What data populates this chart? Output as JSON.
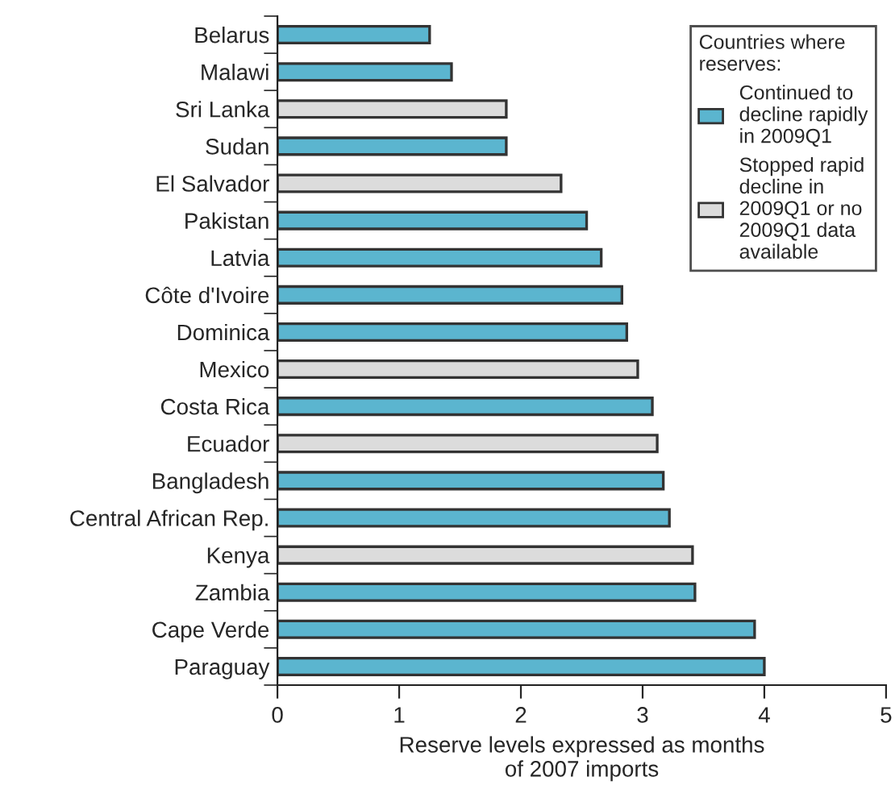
{
  "chart_data": {
    "type": "bar",
    "orientation": "horizontal",
    "xlabel": "Reserve levels expressed as months\nof 2007 imports",
    "legend_title": "Countries where\nreserves:",
    "legend": "top right",
    "grid": false,
    "categories": [
      "Belarus",
      "Malawi",
      "Sri Lanka",
      "Sudan",
      "El Salvador",
      "Pakistan",
      "Latvia",
      "Côte d'Ivoire",
      "Dominica",
      "Mexico",
      "Costa Rica",
      "Ecuador",
      "Bangladesh",
      "Central African Rep.",
      "Kenya",
      "Zambia",
      "Cape Verde",
      "Paraguay"
    ],
    "series": [
      {
        "name": "Continued to\ndecline rapidly\nin 2009Q1",
        "color": "#5bb5cf",
        "values": [
          1.25,
          1.43,
          null,
          1.88,
          null,
          2.54,
          2.66,
          2.83,
          2.87,
          null,
          3.08,
          null,
          3.17,
          3.22,
          null,
          3.43,
          3.92,
          4.0
        ]
      },
      {
        "name": "Stopped rapid\ndecline in\n2009Q1 or no\n2009Q1 data\navailable",
        "color": "#dcdcdc",
        "values": [
          null,
          null,
          1.88,
          null,
          2.33,
          null,
          null,
          null,
          null,
          2.96,
          null,
          3.12,
          null,
          null,
          3.41,
          null,
          null,
          null
        ]
      }
    ],
    "xlim": [
      0,
      5
    ],
    "xticks": [
      0,
      1,
      2,
      3,
      4,
      5
    ]
  }
}
